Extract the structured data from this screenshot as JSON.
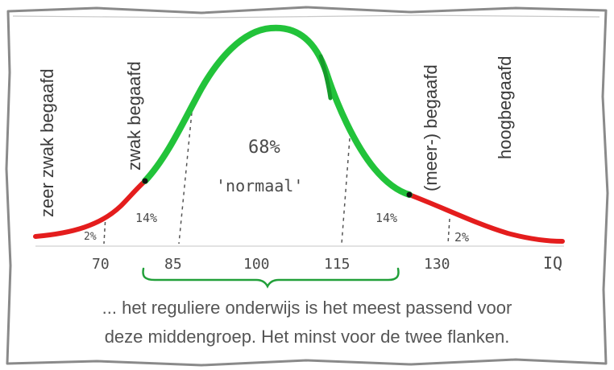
{
  "labels": {
    "zeer_zwak": "zeer zwak begaafd",
    "zwak": "zwak begaafd",
    "meer": "(meer-) begaafd",
    "hoog": "hoogbegaafd"
  },
  "annotations": {
    "center_pct": "68%",
    "center_word": "'normaal'",
    "left_pct": "14%",
    "right_pct": "14%",
    "far_left_pct": "2%",
    "far_right_pct": "2%"
  },
  "axis": {
    "ticks": [
      "70",
      "85",
      "100",
      "115",
      "130"
    ],
    "label": "IQ"
  },
  "caption": {
    "line1": "... het reguliere onderwijs is het meest passend voor",
    "line2": "deze middengroep. Het minst voor de twee flanken."
  },
  "colors": {
    "normal": "#22c33a",
    "tails": "#e41d1d",
    "border": "#8a8a8a",
    "text": "#3a3a3a"
  }
}
